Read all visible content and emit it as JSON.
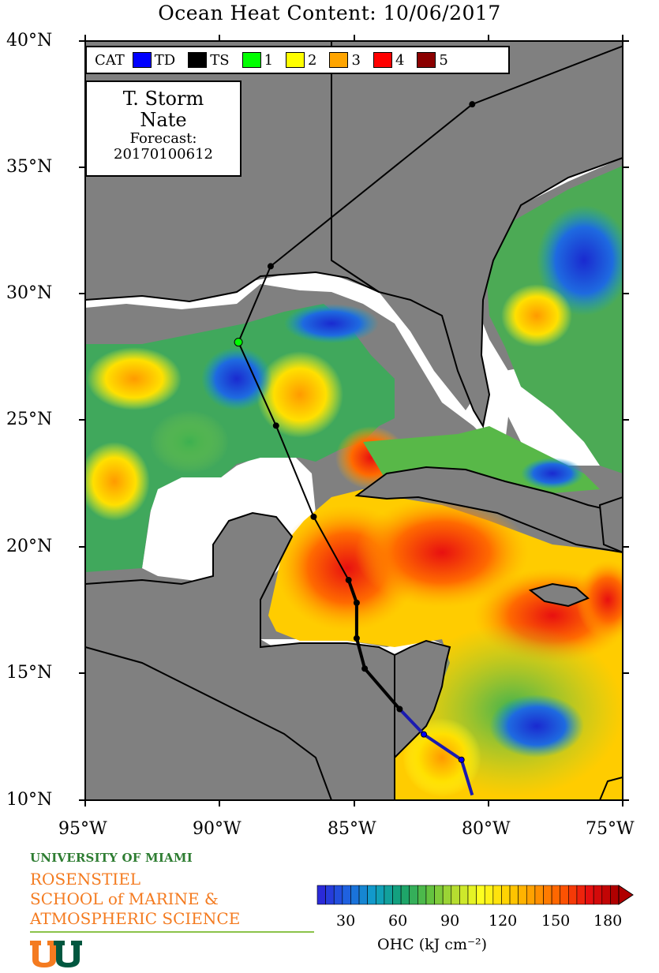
{
  "map": {
    "title": "Ocean Heat Content: 10/06/2017",
    "lat_labels": [
      "40°N",
      "35°N",
      "30°N",
      "25°N",
      "20°N",
      "15°N",
      "10°N"
    ],
    "lon_labels": [
      "95°W",
      "90°W",
      "85°W",
      "80°W",
      "75°W"
    ],
    "extent": {
      "lon_min": -95,
      "lon_max": -75,
      "lat_min": 10,
      "lat_max": 40
    }
  },
  "legend": {
    "cat_label": "CAT",
    "categories": [
      {
        "label": "TD",
        "color": "#0000ff"
      },
      {
        "label": "TS",
        "color": "#000000"
      },
      {
        "label": "1",
        "color": "#00ff00"
      },
      {
        "label": "2",
        "color": "#ffff00"
      },
      {
        "label": "3",
        "color": "#ffa500"
      },
      {
        "label": "4",
        "color": "#ff0000"
      },
      {
        "label": "5",
        "color": "#8b0000"
      }
    ]
  },
  "storm": {
    "type": "T. Storm",
    "name": "Nate",
    "forecast_label": "Forecast:",
    "forecast_id": "20170100612",
    "track": [
      {
        "lon": -80.6,
        "lat": 10.2,
        "cat": "TD"
      },
      {
        "lon": -81.0,
        "lat": 11.6,
        "cat": "TD"
      },
      {
        "lon": -82.4,
        "lat": 12.6,
        "cat": "TD"
      },
      {
        "lon": -83.3,
        "lat": 13.6,
        "cat": "TS"
      },
      {
        "lon": -84.6,
        "lat": 15.2,
        "cat": "TS"
      },
      {
        "lon": -84.9,
        "lat": 16.4,
        "cat": "TS"
      },
      {
        "lon": -84.9,
        "lat": 17.8,
        "cat": "TS"
      },
      {
        "lon": -85.2,
        "lat": 18.7,
        "cat": "TS"
      },
      {
        "lon": -86.5,
        "lat": 21.2,
        "cat": "TS"
      },
      {
        "lon": -87.9,
        "lat": 24.8,
        "cat": "TS"
      },
      {
        "lon": -89.3,
        "lat": 28.1,
        "cat": "1"
      },
      {
        "lon": -88.1,
        "lat": 31.1,
        "cat": "TS"
      },
      {
        "lon": -80.6,
        "lat": 37.5,
        "cat": "TS"
      },
      {
        "lon": -75.0,
        "lat": 39.8,
        "cat": "TS"
      }
    ]
  },
  "colorbar": {
    "label": "OHC (kJ cm⁻²)",
    "ticks": [
      "30",
      "60",
      "90",
      "120",
      "150",
      "180"
    ],
    "min": 0,
    "max": 180,
    "colors": [
      "#2a2ad8",
      "#1e64e0",
      "#10a0c8",
      "#14a070",
      "#5cc040",
      "#b4dc30",
      "#ffff20",
      "#ffd000",
      "#ff9a00",
      "#ff5a00",
      "#e81010",
      "#b00000"
    ]
  },
  "logo": {
    "university": "UNIVERSITY OF MIAMI",
    "school_lines": [
      "ROSENSTIEL",
      "SCHOOL of MARINE &",
      "ATMOSPHERIC SCIENCE"
    ]
  }
}
